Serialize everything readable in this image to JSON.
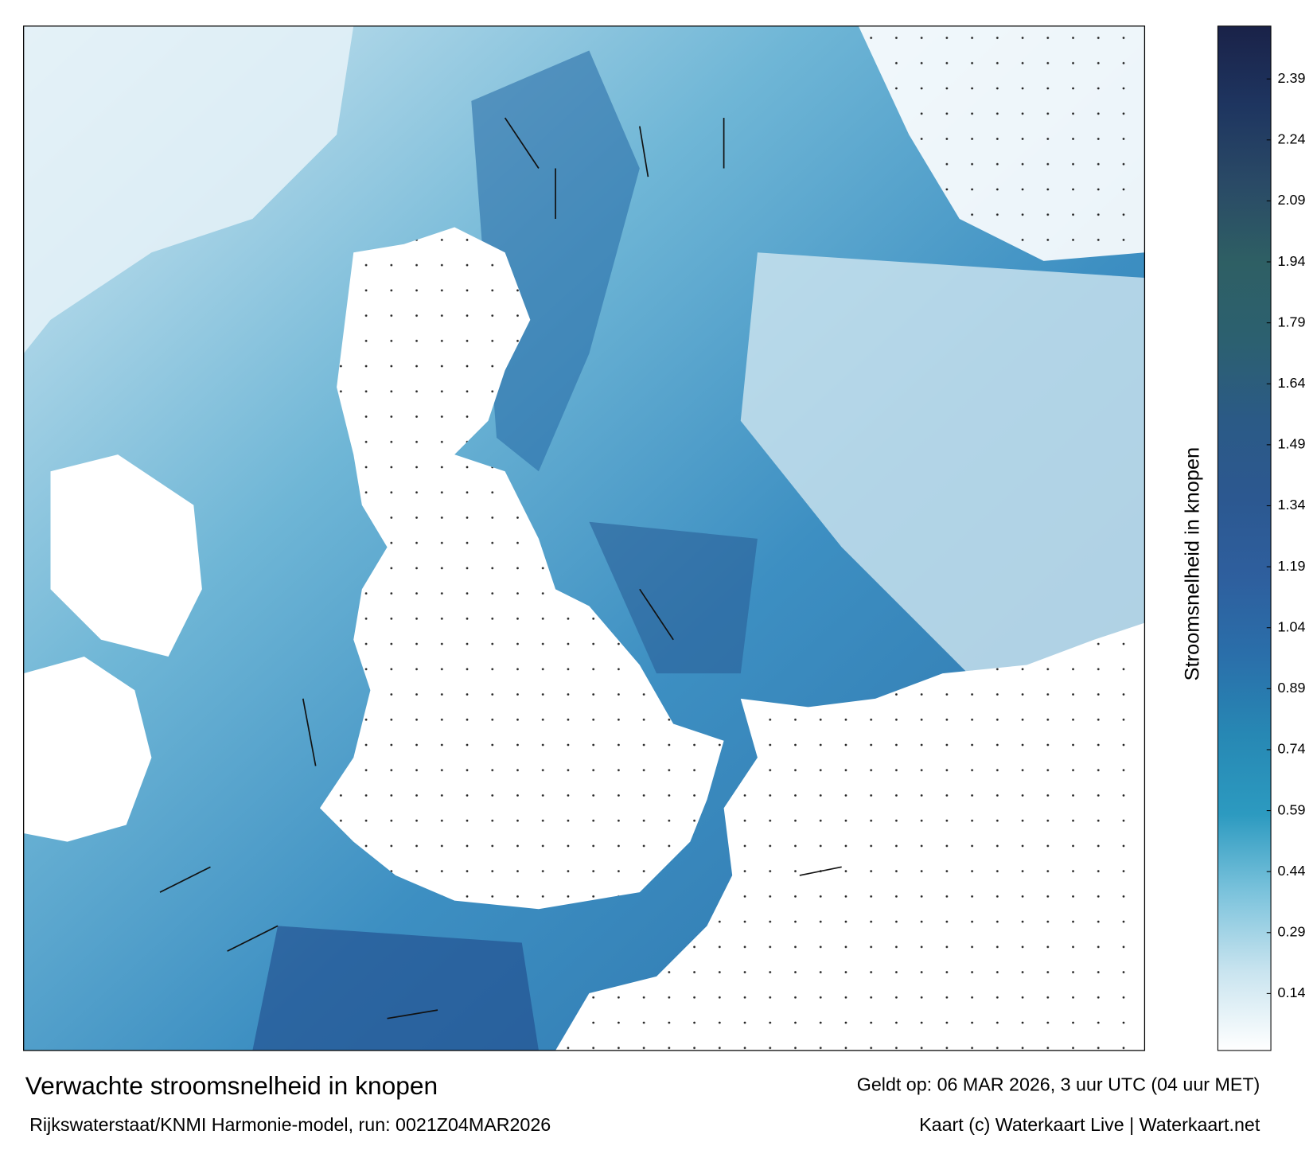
{
  "title": "Verwachte stroomsnelheid in knopen",
  "subtitle": "Rijkswaterstaat/KNMI Harmonie-model, run: 0021Z04MAR2026",
  "valid_time": "Geldt op: 06 MAR 2026, 3 uur UTC (04 uur MET)",
  "credits": "Kaart (c) Waterkaart Live | Waterkaart.net",
  "colorbar": {
    "label": "Stroomsnelheid in knopen",
    "lim": [
      0,
      2.52
    ],
    "ticks": [
      0.14,
      0.29,
      0.44,
      0.59,
      0.74,
      0.89,
      1.04,
      1.19,
      1.34,
      1.49,
      1.64,
      1.79,
      1.94,
      2.09,
      2.24,
      2.39
    ],
    "colors": [
      "#ffffff",
      "#c9e4ef",
      "#7cc3dc",
      "#2c9ac0",
      "#2788b4",
      "#2a6faa",
      "#2e5f9e",
      "#2c5890",
      "#2b5a86",
      "#2c6070",
      "#2e5f64",
      "#2a4a66",
      "#1e3560",
      "#1a2248"
    ]
  }
}
